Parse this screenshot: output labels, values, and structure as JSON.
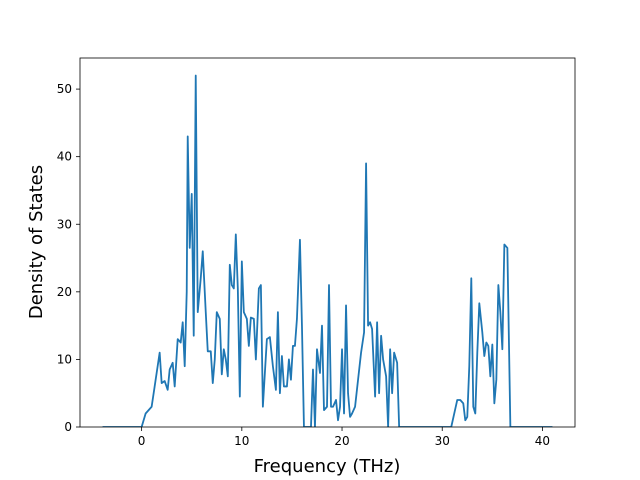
{
  "chart_data": {
    "type": "line",
    "xlabel": "Frequency (THz)",
    "ylabel": "Density of States",
    "xlim": [
      -6.15,
      43.25
    ],
    "ylim": [
      0,
      54.6
    ],
    "xticks": [
      0,
      10,
      20,
      30,
      40
    ],
    "yticks": [
      0,
      10,
      20,
      30,
      40,
      50
    ],
    "grid": false,
    "series": [
      {
        "color": "#1f77b4",
        "x": [
          -3.9,
          0,
          0.4,
          1,
          1.3,
          1.6,
          1.8,
          2,
          2.3,
          2.6,
          2.8,
          3.1,
          3.3,
          3.6,
          3.9,
          4.1,
          4.3,
          4.5,
          4.6,
          4.8,
          5,
          5.2,
          5.4,
          5.6,
          5.9,
          6.1,
          6.4,
          6.6,
          6.9,
          7.1,
          7.3,
          7.5,
          7.8,
          8,
          8.2,
          8.4,
          8.6,
          8.8,
          9,
          9.2,
          9.4,
          9.6,
          9.8,
          10,
          10.2,
          10.5,
          10.7,
          10.9,
          11.2,
          11.4,
          11.7,
          11.9,
          12.1,
          12.3,
          12.5,
          12.8,
          13.1,
          13.4,
          13.6,
          13.8,
          14,
          14.2,
          14.5,
          14.7,
          14.9,
          15.1,
          15.3,
          15.5,
          15.8,
          16,
          16.2,
          16.9,
          17.1,
          17.3,
          17.5,
          17.8,
          18,
          18.2,
          18.5,
          18.7,
          18.9,
          19.1,
          19.4,
          19.6,
          19.8,
          20,
          20.2,
          20.4,
          20.6,
          20.8,
          21,
          21.3,
          21.6,
          21.9,
          22.2,
          22.4,
          22.6,
          22.8,
          23,
          23.3,
          23.5,
          23.7,
          23.9,
          24.1,
          24.4,
          24.6,
          24.8,
          25,
          25.2,
          25.5,
          25.7,
          30.9,
          31.2,
          31.5,
          31.8,
          32.1,
          32.3,
          32.5,
          32.7,
          32.9,
          33.1,
          33.3,
          33.5,
          33.7,
          34,
          34.2,
          34.4,
          34.6,
          34.8,
          35,
          35.2,
          35.4,
          35.6,
          35.8,
          36,
          36.2,
          36.5,
          36.8,
          41
        ],
        "values": [
          0,
          0,
          2,
          3,
          6,
          9,
          11,
          6.5,
          6.8,
          5.5,
          8.5,
          9.5,
          6,
          13,
          12.5,
          15.5,
          9,
          20,
          43,
          26.5,
          34.5,
          13.5,
          52,
          17,
          22,
          26,
          17,
          11.2,
          11.2,
          6.5,
          10,
          17,
          16,
          7.8,
          11.5,
          10,
          7.5,
          24,
          21,
          20.5,
          28.5,
          20.5,
          4.5,
          24.5,
          17,
          16,
          12,
          16.2,
          16,
          10,
          20.5,
          21,
          3,
          8,
          13,
          13.3,
          9,
          5.5,
          17,
          5,
          10.5,
          6,
          6,
          10,
          7,
          12,
          12,
          16,
          27.7,
          15,
          0,
          0,
          8.5,
          0,
          11.5,
          8,
          15,
          2.5,
          3,
          21,
          3,
          3,
          4,
          1,
          3,
          11.5,
          2,
          18,
          5,
          1.5,
          2,
          3,
          7,
          11,
          14,
          39,
          15,
          15.5,
          14.5,
          4.5,
          15.5,
          5,
          13.5,
          10,
          7.5,
          0,
          11.5,
          5,
          11,
          9.5,
          0,
          0,
          2,
          4,
          4,
          3.5,
          1,
          1.5,
          9,
          22,
          3,
          2,
          11,
          18.3,
          14,
          10.5,
          12.5,
          12,
          7.5,
          12.2,
          3.5,
          7,
          21,
          17,
          11.5,
          27,
          26.5,
          0,
          0
        ]
      }
    ]
  }
}
